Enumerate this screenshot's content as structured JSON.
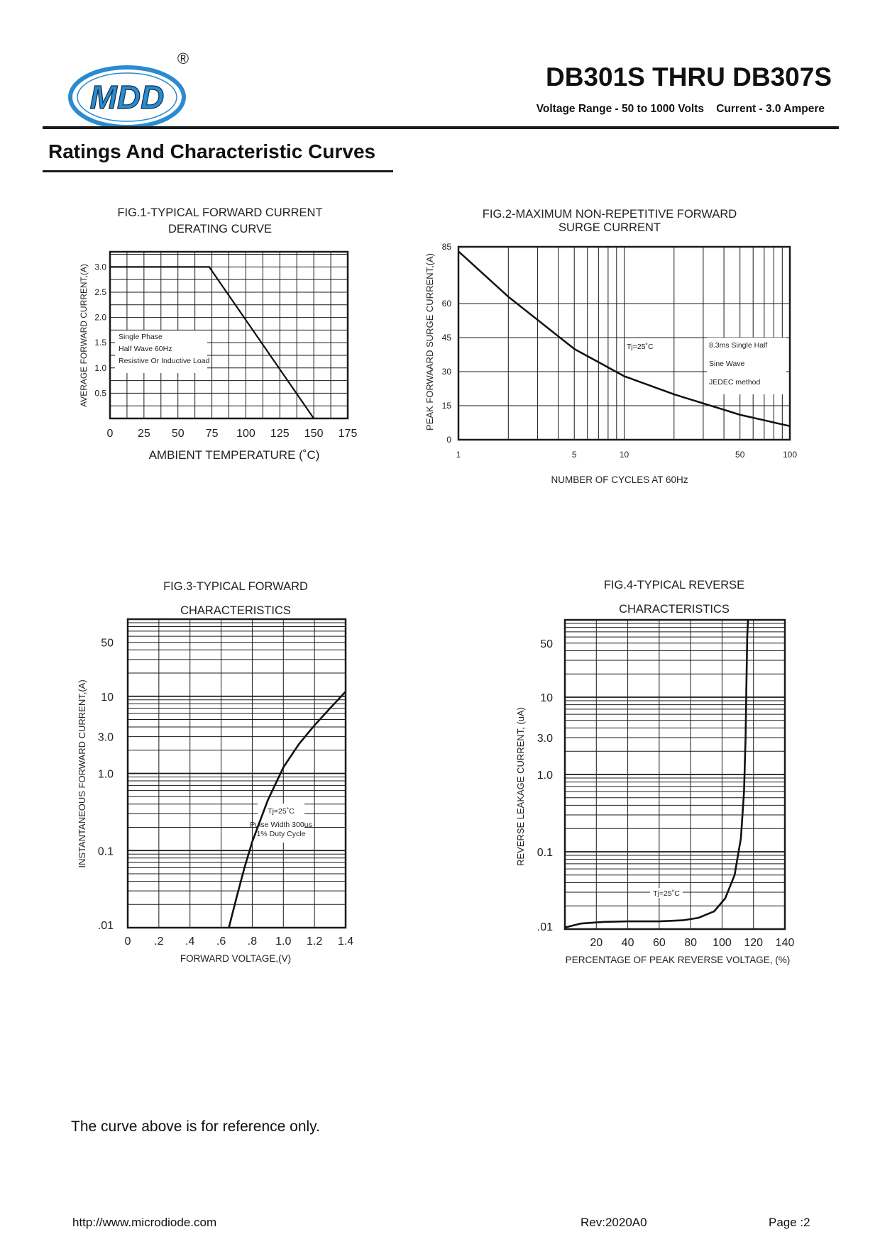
{
  "header": {
    "logo_text": "MDD",
    "registered_mark": "®",
    "title": "DB301S THRU DB307S",
    "subtitle": "Voltage Range - 50 to 1000 Volts    Current - 3.0 Ampere"
  },
  "section_title": "Ratings And Characteristic Curves",
  "note": "The curve above is for reference only.",
  "footer": {
    "url": "http://www.microdiode.com",
    "revision": "Rev:2020A0",
    "page": "Page :2"
  },
  "colors": {
    "logo_blue": "#2a8bd0",
    "ink": "#111111"
  },
  "chart_data": [
    {
      "type": "line",
      "title": [
        "FIG.1-TYPICAL FORWARD CURRENT",
        "DERATING CURVE"
      ],
      "xlabel": "AMBIENT TEMPERATURE (˚C)",
      "ylabel": "AVERAGE FORWARD CURRENT,(A)",
      "xlim": [
        0,
        175
      ],
      "ylim": [
        0,
        3.3
      ],
      "x_ticks": [
        0,
        25,
        50,
        75,
        100,
        125,
        150,
        175
      ],
      "x_tick_labels": [
        "0",
        "25",
        "50",
        "75",
        "100",
        "125",
        "150",
        "175"
      ],
      "y_ticks": [
        0.5,
        1.0,
        1.5,
        2.0,
        2.5,
        3.0
      ],
      "y_tick_labels": [
        "0.5",
        "1.0",
        "1.5",
        "2.0",
        "2.5",
        "3.0"
      ],
      "series": [
        {
          "name": "derating",
          "x": [
            0,
            73,
            150
          ],
          "y": [
            3.0,
            3.0,
            0
          ]
        }
      ],
      "annotations": [
        "Single Phase",
        "Half Wave 60Hz",
        "Resistive Or Inductive Load"
      ]
    },
    {
      "type": "line",
      "title": [
        "FIG.2-MAXIMUM NON-REPETITIVE FORWARD",
        "SURGE CURRENT"
      ],
      "xlabel": "NUMBER OF CYCLES AT 60Hz",
      "ylabel": "PEAK FORWAARD SURGE CURRENT,(A)",
      "xscale": "log",
      "xlim": [
        1,
        100
      ],
      "ylim": [
        0,
        85
      ],
      "x_tick_labels": [
        "1",
        "5",
        "10",
        "50",
        "100"
      ],
      "x_tick_values": [
        1,
        5,
        10,
        50,
        100
      ],
      "y_ticks": [
        0,
        15,
        30,
        45,
        60,
        85
      ],
      "y_tick_labels": [
        "0",
        "15",
        "30",
        "45",
        "60",
        "85"
      ],
      "series": [
        {
          "name": "surge",
          "x": [
            1,
            2,
            5,
            10,
            20,
            50,
            100
          ],
          "y": [
            83,
            63,
            40,
            28,
            20,
            11,
            6
          ]
        }
      ],
      "annotations": [
        "Tj=25˚C",
        "8.3ms Single Half",
        "Sine Wave",
        "JEDEC method"
      ]
    },
    {
      "type": "line",
      "title": [
        "FIG.3-TYPICAL FORWARD",
        "CHARACTERISTICS"
      ],
      "xlabel": "FORWARD VOLTAGE,(V)",
      "ylabel": "INSTANTANEOUS FORWARD CURRENT,(A)",
      "yscale": "log",
      "xlim": [
        0,
        1.4
      ],
      "ylim": [
        0.01,
        100
      ],
      "x_ticks": [
        0,
        0.2,
        0.4,
        0.6,
        0.8,
        1.0,
        1.2,
        1.4
      ],
      "x_tick_labels": [
        "0",
        ".2",
        ".4",
        ".6",
        ".8",
        "1.0",
        "1.2",
        "1.4"
      ],
      "y_tick_values": [
        0.01,
        0.1,
        1,
        3,
        10,
        50
      ],
      "y_tick_labels": [
        ".01",
        "0.1",
        "1.0",
        "3.0",
        "10",
        "50"
      ],
      "series": [
        {
          "name": "forward",
          "x": [
            0.65,
            0.7,
            0.75,
            0.8,
            0.9,
            1.0,
            1.1,
            1.2,
            1.3,
            1.4
          ],
          "y": [
            0.01,
            0.025,
            0.06,
            0.13,
            0.45,
            1.2,
            2.4,
            4.2,
            7.0,
            11.5
          ]
        }
      ],
      "annotations": [
        "Tj=25˚C",
        "Pulse Width 300us",
        "1% Duty Cycle"
      ]
    },
    {
      "type": "line",
      "title": [
        "FIG.4-TYPICAL REVERSE",
        "CHARACTERISTICS"
      ],
      "xlabel": "PERCENTAGE OF PEAK REVERSE VOLTAGE, (%)",
      "ylabel": "REVERSE LEAKAGE CURRENT, (uA)",
      "yscale": "log",
      "xlim": [
        0,
        140
      ],
      "ylim": [
        0.01,
        100
      ],
      "x_ticks": [
        20,
        40,
        60,
        80,
        100,
        120,
        140
      ],
      "x_tick_labels": [
        "20",
        "40",
        "60",
        "80",
        "100",
        "120",
        "140"
      ],
      "y_tick_values": [
        0.01,
        0.1,
        1,
        3,
        10,
        50
      ],
      "y_tick_labels": [
        ".01",
        "0.1",
        "1.0",
        "3.0",
        "10",
        "50"
      ],
      "series": [
        {
          "name": "reverse",
          "x": [
            0,
            10,
            25,
            40,
            60,
            75,
            85,
            95,
            102,
            108,
            112,
            114,
            115,
            115.5,
            116,
            116.5
          ],
          "y": [
            0.0105,
            0.0118,
            0.0124,
            0.0126,
            0.0126,
            0.013,
            0.014,
            0.017,
            0.025,
            0.05,
            0.15,
            0.6,
            3,
            15,
            60,
            100
          ]
        }
      ],
      "annotations": [
        "Tj=25˚C"
      ]
    }
  ]
}
